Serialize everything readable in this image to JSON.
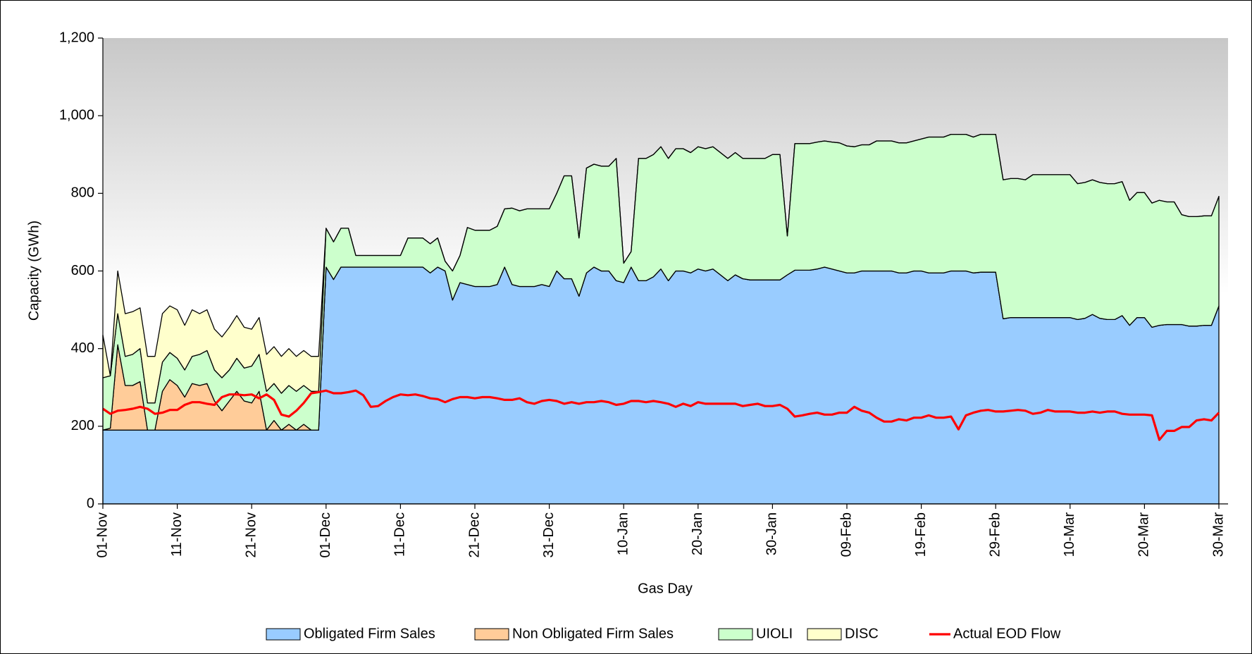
{
  "chart_data": {
    "type": "area",
    "stacked": true,
    "y_label": "Capacity (GWh)",
    "x_label": "Gas Day",
    "categories": [
      "01-Nov",
      null,
      null,
      null,
      null,
      null,
      null,
      null,
      null,
      null,
      "11-Nov",
      null,
      null,
      null,
      null,
      null,
      null,
      null,
      null,
      null,
      "21-Nov",
      null,
      null,
      null,
      null,
      null,
      null,
      null,
      null,
      null,
      "01-Dec",
      null,
      null,
      null,
      null,
      null,
      null,
      null,
      null,
      null,
      "11-Dec",
      null,
      null,
      null,
      null,
      null,
      null,
      null,
      null,
      null,
      "21-Dec",
      null,
      null,
      null,
      null,
      null,
      null,
      null,
      null,
      null,
      "31-Dec",
      null,
      null,
      null,
      null,
      null,
      null,
      null,
      null,
      null,
      "10-Jan",
      null,
      null,
      null,
      null,
      null,
      null,
      null,
      null,
      null,
      "20-Jan",
      null,
      null,
      null,
      null,
      null,
      null,
      null,
      null,
      null,
      "30-Jan",
      null,
      null,
      null,
      null,
      null,
      null,
      null,
      null,
      null,
      "09-Feb",
      null,
      null,
      null,
      null,
      null,
      null,
      null,
      null,
      null,
      "19-Feb",
      null,
      null,
      null,
      null,
      null,
      null,
      null,
      null,
      null,
      "29-Feb",
      null,
      null,
      null,
      null,
      null,
      null,
      null,
      null,
      null,
      "10-Mar",
      null,
      null,
      null,
      null,
      null,
      null,
      null,
      null,
      null,
      "20-Mar",
      null,
      null,
      null,
      null,
      null,
      null,
      null,
      null,
      null,
      "30-Mar"
    ],
    "series": [
      {
        "name": "Obligated Firm Sales",
        "color": "#99ccff",
        "values": [
          190,
          190,
          190,
          190,
          190,
          190,
          190,
          190,
          190,
          190,
          190,
          190,
          190,
          190,
          190,
          190,
          190,
          190,
          190,
          190,
          190,
          190,
          190,
          190,
          190,
          190,
          190,
          190,
          190,
          190,
          610,
          578,
          610,
          610,
          610,
          610,
          610,
          610,
          610,
          610,
          610,
          610,
          610,
          610,
          595,
          610,
          600,
          525,
          570,
          565,
          560,
          560,
          560,
          565,
          610,
          565,
          560,
          560,
          560,
          565,
          560,
          600,
          580,
          580,
          535,
          595,
          610,
          600,
          600,
          575,
          570,
          610,
          575,
          575,
          585,
          605,
          575,
          600,
          600,
          595,
          605,
          600,
          605,
          590,
          575,
          590,
          580,
          577,
          577,
          577,
          577,
          577,
          590,
          602,
          602,
          602,
          605,
          610,
          605,
          600,
          595,
          595,
          600,
          600,
          600,
          600,
          600,
          595,
          595,
          600,
          600,
          595,
          595,
          595,
          600,
          600,
          600,
          595,
          597,
          597,
          597,
          477,
          480,
          480,
          480,
          480,
          480,
          480,
          480,
          480,
          480,
          475,
          478,
          488,
          478,
          475,
          475,
          485,
          460,
          480,
          480,
          455,
          460,
          462,
          462,
          462,
          458,
          458,
          460,
          460,
          510
        ]
      },
      {
        "name": "Non Obligated Firm Sales",
        "color": "#ffcc99",
        "values": [
          0,
          5,
          220,
          115,
          115,
          125,
          0,
          0,
          100,
          130,
          115,
          85,
          120,
          115,
          120,
          75,
          50,
          75,
          100,
          75,
          70,
          100,
          0,
          25,
          0,
          15,
          0,
          15,
          0,
          0,
          0,
          0,
          0,
          0,
          0,
          0,
          0,
          0,
          0,
          0,
          0,
          0,
          0,
          0,
          0,
          0,
          0,
          0,
          0,
          0,
          0,
          0,
          0,
          0,
          0,
          0,
          0,
          0,
          0,
          0,
          0,
          0,
          0,
          0,
          0,
          0,
          0,
          0,
          0,
          0,
          0,
          0,
          0,
          0,
          0,
          0,
          0,
          0,
          0,
          0,
          0,
          0,
          0,
          0,
          0,
          0,
          0,
          0,
          0,
          0,
          0,
          0,
          0,
          0,
          0,
          0,
          0,
          0,
          0,
          0,
          0,
          0,
          0,
          0,
          0,
          0,
          0,
          0,
          0,
          0,
          0,
          0,
          0,
          0,
          0,
          0,
          0,
          0,
          0,
          0,
          0,
          0,
          0,
          0,
          0,
          0,
          0,
          0,
          0,
          0,
          0,
          0,
          0,
          0,
          0,
          0,
          0,
          0,
          0,
          0,
          0,
          0,
          0,
          0,
          0,
          0,
          0,
          0,
          0,
          0,
          0
        ]
      },
      {
        "name": "UIOLI",
        "color": "#ccffcc",
        "values": [
          135,
          135,
          80,
          75,
          80,
          85,
          70,
          70,
          75,
          70,
          70,
          70,
          70,
          80,
          85,
          80,
          85,
          80,
          85,
          85,
          95,
          95,
          100,
          95,
          95,
          100,
          100,
          100,
          100,
          100,
          100,
          97,
          100,
          100,
          30,
          30,
          30,
          30,
          30,
          30,
          30,
          75,
          75,
          75,
          75,
          75,
          25,
          75,
          70,
          147,
          145,
          145,
          145,
          150,
          150,
          197,
          195,
          200,
          200,
          195,
          200,
          200,
          265,
          265,
          150,
          270,
          265,
          270,
          270,
          315,
          50,
          40,
          315,
          315,
          315,
          315,
          315,
          315,
          315,
          310,
          315,
          315,
          315,
          315,
          315,
          315,
          310,
          313,
          313,
          313,
          323,
          323,
          100,
          326,
          326,
          326,
          327,
          325,
          327,
          330,
          327,
          325,
          325,
          325,
          335,
          335,
          335,
          335,
          335,
          335,
          340,
          350,
          350,
          350,
          352,
          352,
          352,
          350,
          355,
          355,
          355,
          358,
          358,
          358,
          355,
          368,
          368,
          368,
          368,
          368,
          368,
          350,
          350,
          347,
          350,
          350,
          350,
          345,
          322,
          322,
          322,
          320,
          322,
          316,
          316,
          283,
          282,
          282,
          282,
          282,
          282
        ]
      },
      {
        "name": "DISC",
        "color": "#ffffcc",
        "values": [
          110,
          0,
          110,
          110,
          110,
          105,
          120,
          120,
          125,
          120,
          125,
          115,
          120,
          105,
          105,
          105,
          105,
          110,
          110,
          105,
          95,
          95,
          95,
          95,
          95,
          95,
          90,
          90,
          90,
          90,
          0,
          0,
          0,
          0,
          0,
          0,
          0,
          0,
          0,
          0,
          0,
          0,
          0,
          0,
          0,
          0,
          0,
          0,
          0,
          0,
          0,
          0,
          0,
          0,
          0,
          0,
          0,
          0,
          0,
          0,
          0,
          0,
          0,
          0,
          0,
          0,
          0,
          0,
          0,
          0,
          0,
          0,
          0,
          0,
          0,
          0,
          0,
          0,
          0,
          0,
          0,
          0,
          0,
          0,
          0,
          0,
          0,
          0,
          0,
          0,
          0,
          0,
          0,
          0,
          0,
          0,
          0,
          0,
          0,
          0,
          0,
          0,
          0,
          0,
          0,
          0,
          0,
          0,
          0,
          0,
          0,
          0,
          0,
          0,
          0,
          0,
          0,
          0,
          0,
          0,
          0,
          0,
          0,
          0,
          0,
          0,
          0,
          0,
          0,
          0,
          0,
          0,
          0,
          0,
          0,
          0,
          0,
          0,
          0,
          0,
          0,
          0,
          0,
          0,
          0,
          0,
          0,
          0,
          0,
          0,
          0
        ]
      },
      {
        "name": "Actual EOD Flow",
        "color": "#ff0000",
        "type": "line",
        "values": [
          245,
          232,
          240,
          242,
          245,
          250,
          245,
          232,
          235,
          242,
          242,
          255,
          262,
          262,
          258,
          255,
          275,
          282,
          282,
          280,
          282,
          272,
          282,
          268,
          230,
          225,
          240,
          260,
          285,
          288,
          292,
          285,
          285,
          288,
          292,
          280,
          250,
          252,
          265,
          275,
          282,
          280,
          282,
          278,
          272,
          270,
          262,
          270,
          275,
          275,
          272,
          275,
          275,
          272,
          268,
          268,
          272,
          262,
          258,
          265,
          268,
          265,
          258,
          262,
          258,
          262,
          262,
          265,
          262,
          255,
          258,
          265,
          265,
          262,
          265,
          262,
          258,
          250,
          258,
          252,
          262,
          258,
          258,
          258,
          258,
          258,
          252,
          255,
          258,
          252,
          252,
          255,
          245,
          225,
          228,
          232,
          235,
          230,
          230,
          235,
          235,
          250,
          240,
          235,
          222,
          212,
          212,
          218,
          215,
          222,
          222,
          228,
          222,
          222,
          225,
          192,
          228,
          235,
          240,
          242,
          238,
          238,
          240,
          242,
          240,
          232,
          235,
          242,
          238,
          238,
          238,
          235,
          235,
          238,
          235,
          238,
          238,
          232,
          230,
          230,
          230,
          228,
          165,
          188,
          188,
          198,
          198,
          215,
          218,
          215,
          235
        ]
      }
    ],
    "ylim": [
      0,
      1200
    ],
    "yticks": [
      0,
      200,
      400,
      600,
      800,
      {
        "value": 1000,
        "label": "1,000"
      },
      {
        "value": 1200,
        "label": "1,200"
      }
    ],
    "legend": "bottom"
  }
}
